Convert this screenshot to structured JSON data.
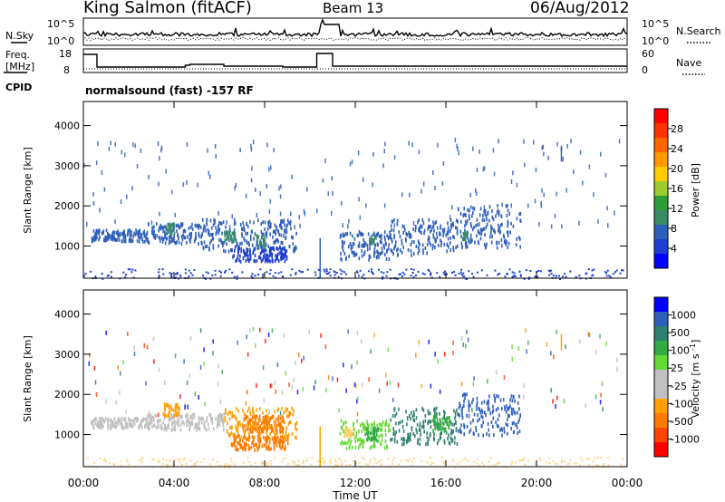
{
  "header": {
    "station": "King Salmon (fitACF)",
    "beam": "Beam 13",
    "date": "06/Aug/2012"
  },
  "noise_panel": {
    "left_label": "N.Sky",
    "right_label": "N.Search",
    "left_ticks": [
      "10^5",
      "10^0"
    ],
    "right_ticks": [
      "10^5",
      "10^0"
    ]
  },
  "freq_panel": {
    "left_label_1": "Freq.",
    "left_label_2": "[MHz]",
    "right_label": "Nave",
    "left_ticks": [
      "18",
      "8"
    ],
    "right_ticks": [
      "60",
      "0"
    ]
  },
  "cpid": {
    "label": "CPID",
    "text": "normalsound (fast) -157 RF"
  },
  "colors": {
    "power": [
      "#0000ff",
      "#1f3fd0",
      "#2f5fb8",
      "#3a8a68",
      "#2f9c3a",
      "#9ccc30",
      "#ffcc00",
      "#ff9900",
      "#ff6600",
      "#ff3300",
      "#ff0000"
    ],
    "velocity": [
      "#ff0000",
      "#ff4400",
      "#ff7a00",
      "#ff9f00",
      "#c0c0c0",
      "#c0c0c0",
      "#66d833",
      "#33aa44",
      "#2f7f70",
      "#2f5fb8",
      "#0000ff"
    ]
  },
  "chart_data": [
    {
      "type": "heatmap",
      "title": "Power",
      "ylabel": "Slant Range [km]",
      "colorbar_label": "Power [dB]",
      "colorbar_ticks": [
        "28",
        "24",
        "20",
        "16",
        "12",
        "8",
        "4"
      ],
      "xlim": [
        0,
        24
      ],
      "ylim": [
        200,
        4600
      ],
      "yticks": [
        1000,
        2000,
        3000,
        4000
      ],
      "bands": [
        {
          "t0": 0.3,
          "t1": 2.8,
          "r0": 1150,
          "r1": 1450,
          "color": "#2f5fb8"
        },
        {
          "t0": 2.8,
          "t1": 5.2,
          "r0": 1100,
          "r1": 1600,
          "color": "#2f5fb8"
        },
        {
          "t0": 5.2,
          "t1": 9.4,
          "r0": 900,
          "r1": 1700,
          "color": "#2f5fb8"
        },
        {
          "t0": 6.5,
          "t1": 9.0,
          "r0": 650,
          "r1": 1000,
          "color": "#1f3fd0"
        },
        {
          "t0": 11.3,
          "t1": 13.5,
          "r0": 700,
          "r1": 1400,
          "color": "#2f5fb8"
        },
        {
          "t0": 13.5,
          "t1": 16.5,
          "r0": 800,
          "r1": 1700,
          "color": "#2f5fb8"
        },
        {
          "t0": 16.5,
          "t1": 19.3,
          "r0": 1000,
          "r1": 2050,
          "color": "#2f5fb8"
        }
      ],
      "highlights": [
        {
          "t0": 3.6,
          "t1": 4.0,
          "r0": 1350,
          "r1": 1600,
          "color": "#3a8a68"
        },
        {
          "t0": 6.2,
          "t1": 6.7,
          "r0": 1150,
          "r1": 1400,
          "color": "#3a8a68"
        },
        {
          "t0": 7.6,
          "t1": 8.0,
          "r0": 1000,
          "r1": 1300,
          "color": "#3a8a68"
        },
        {
          "t0": 12.6,
          "t1": 12.9,
          "r0": 1100,
          "r1": 1300,
          "color": "#3a8a68"
        },
        {
          "t0": 16.7,
          "t1": 17.0,
          "r0": 1200,
          "r1": 1400,
          "color": "#3a8a68"
        }
      ],
      "ground_scatter": {
        "r0": 200,
        "r1": 450,
        "color": "#1f3fd0"
      }
    },
    {
      "type": "heatmap",
      "title": "Velocity",
      "ylabel": "Slant Range [km]",
      "xlabel": "Time UT",
      "colorbar_label": "Velocity [m s^-1]",
      "colorbar_ticks": [
        "1000",
        "500",
        "100",
        "25",
        "-25",
        "-100",
        "-500",
        "-1000"
      ],
      "xlim": [
        0,
        24
      ],
      "ylim": [
        200,
        4600
      ],
      "yticks": [
        1000,
        2000,
        3000,
        4000
      ],
      "xticks": [
        "00:00",
        "04:00",
        "08:00",
        "12:00",
        "16:00",
        "20:00",
        "00:00"
      ],
      "bands": [
        {
          "t0": 0.3,
          "t1": 2.8,
          "r0": 1200,
          "r1": 1450,
          "color": "#c0c0c0"
        },
        {
          "t0": 2.8,
          "t1": 6.2,
          "r0": 1150,
          "r1": 1550,
          "color": "#c0c0c0"
        },
        {
          "t0": 6.2,
          "t1": 9.4,
          "r0": 900,
          "r1": 1700,
          "color": "#ff9f00"
        },
        {
          "t0": 6.5,
          "t1": 9.0,
          "r0": 650,
          "r1": 1000,
          "color": "#ff7a00"
        },
        {
          "t0": 11.3,
          "t1": 13.5,
          "r0": 700,
          "r1": 1400,
          "color": "#66d833"
        },
        {
          "t0": 13.5,
          "t1": 16.5,
          "r0": 800,
          "r1": 1700,
          "color": "#2f7f70"
        },
        {
          "t0": 16.5,
          "t1": 19.3,
          "r0": 1000,
          "r1": 2050,
          "color": "#2f5fb8"
        }
      ],
      "highlights": [
        {
          "t0": 3.5,
          "t1": 4.2,
          "r0": 1500,
          "r1": 1800,
          "color": "#ff9f00"
        },
        {
          "t0": 7.0,
          "t1": 8.8,
          "r0": 1100,
          "r1": 1500,
          "color": "#ff7a00"
        },
        {
          "t0": 12.4,
          "t1": 13.0,
          "r0": 900,
          "r1": 1200,
          "color": "#33aa44"
        },
        {
          "t0": 15.4,
          "t1": 16.2,
          "r0": 1100,
          "r1": 1500,
          "color": "#33aa44"
        },
        {
          "t0": 11.5,
          "t1": 11.9,
          "r0": 1000,
          "r1": 1200,
          "color": "#ffcc66"
        }
      ],
      "ground_scatter": {
        "r0": 200,
        "r1": 450,
        "color": "#ffd890"
      }
    }
  ]
}
